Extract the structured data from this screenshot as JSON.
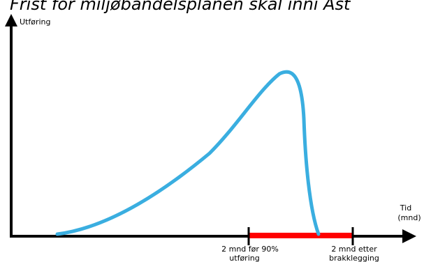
{
  "title_partial": "Frist for miljøbandelsplanen skal inni Ast",
  "y_axis_label": "Utføring",
  "x_axis_label_line1": "Tid",
  "x_axis_label_line2": "(mnd)",
  "marker_left_line1": "2 mnd før 90%",
  "marker_left_line2": "utføring",
  "marker_right_line1": "2 mnd etter",
  "marker_right_line2": "brakklegging",
  "colors": {
    "curve": "#3aaee0",
    "period_bar": "#ff0000",
    "axes": "#000000"
  }
}
